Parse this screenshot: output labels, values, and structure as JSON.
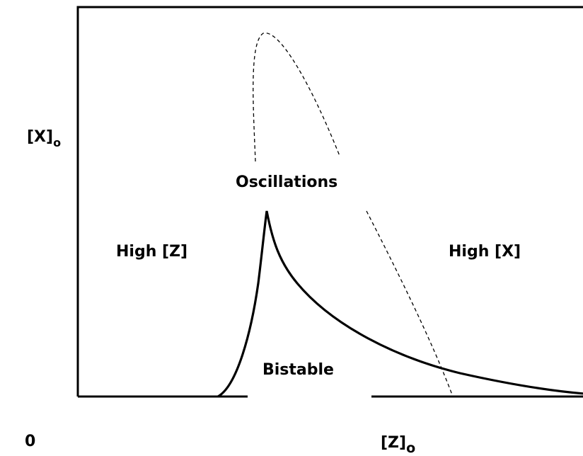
{
  "diagram": {
    "y_axis": {
      "label": "[X]",
      "subscript": "o"
    },
    "x_axis": {
      "label": "[Z]",
      "subscript": "o",
      "origin": "0"
    },
    "regions": {
      "high_z": "High [Z]",
      "oscillations": "Oscillations",
      "high_x": "High [X]",
      "bistable": "Bistable"
    }
  }
}
